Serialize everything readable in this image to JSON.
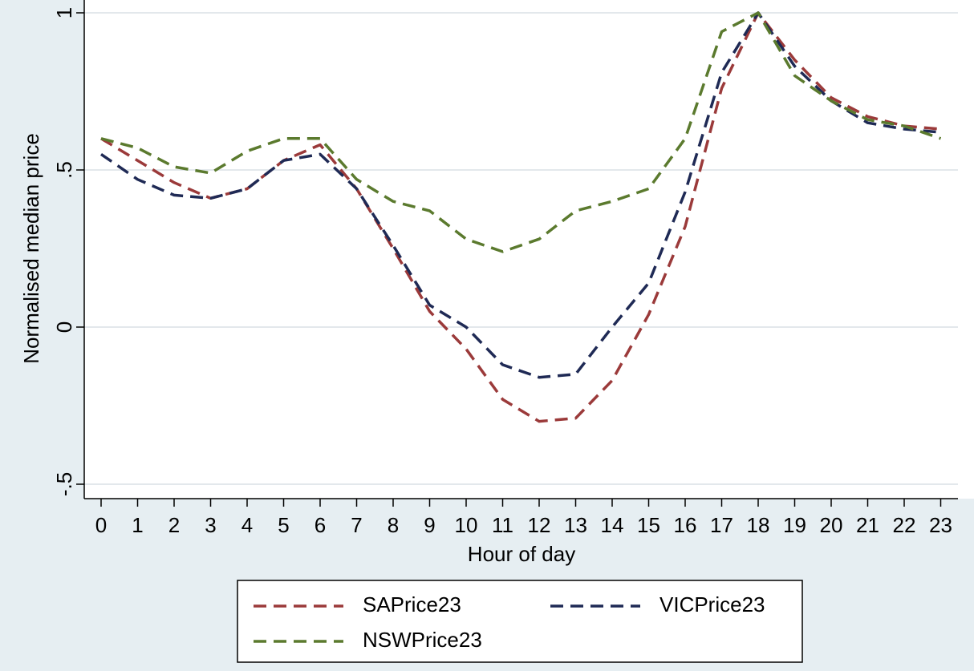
{
  "chart_data": {
    "type": "line",
    "title": "",
    "xlabel": "Hour of day",
    "ylabel": "Normalised median price",
    "x": [
      0,
      1,
      2,
      3,
      4,
      5,
      6,
      7,
      8,
      9,
      10,
      11,
      12,
      13,
      14,
      15,
      16,
      17,
      18,
      19,
      20,
      21,
      22,
      23
    ],
    "x_ticks": [
      "0",
      "1",
      "2",
      "3",
      "4",
      "5",
      "6",
      "7",
      "8",
      "9",
      "10",
      "11",
      "12",
      "13",
      "14",
      "15",
      "16",
      "17",
      "18",
      "19",
      "20",
      "21",
      "22",
      "23"
    ],
    "y_ticks": [
      {
        "value": -0.5,
        "label": "-.5"
      },
      {
        "value": 0,
        "label": "0"
      },
      {
        "value": 0.5,
        "label": ".5"
      },
      {
        "value": 1,
        "label": "1"
      }
    ],
    "xlim": [
      -0.45,
      23.35
    ],
    "ylim": [
      -0.55,
      1.0
    ],
    "grid": "horizontal",
    "legend_position": "bottom",
    "series": [
      {
        "name": "SAPrice23",
        "color": "#9b3a3a",
        "values": [
          0.6,
          0.53,
          0.46,
          0.41,
          0.44,
          0.53,
          0.58,
          0.44,
          0.25,
          0.05,
          -0.07,
          -0.23,
          -0.3,
          -0.29,
          -0.17,
          0.04,
          0.32,
          0.76,
          1.0,
          0.85,
          0.73,
          0.67,
          0.64,
          0.63
        ]
      },
      {
        "name": "VICPrice23",
        "color": "#1f2a55",
        "values": [
          0.55,
          0.47,
          0.42,
          0.41,
          0.44,
          0.53,
          0.55,
          0.44,
          0.26,
          0.07,
          0.0,
          -0.12,
          -0.16,
          -0.15,
          0.0,
          0.14,
          0.43,
          0.81,
          1.0,
          0.83,
          0.72,
          0.65,
          0.63,
          0.62
        ]
      },
      {
        "name": "NSWPrice23",
        "color": "#5b7a2e",
        "values": [
          0.6,
          0.57,
          0.51,
          0.49,
          0.56,
          0.6,
          0.6,
          0.47,
          0.4,
          0.37,
          0.28,
          0.24,
          0.28,
          0.37,
          0.4,
          0.44,
          0.6,
          0.94,
          1.0,
          0.8,
          0.72,
          0.66,
          0.64,
          0.6
        ]
      }
    ]
  }
}
